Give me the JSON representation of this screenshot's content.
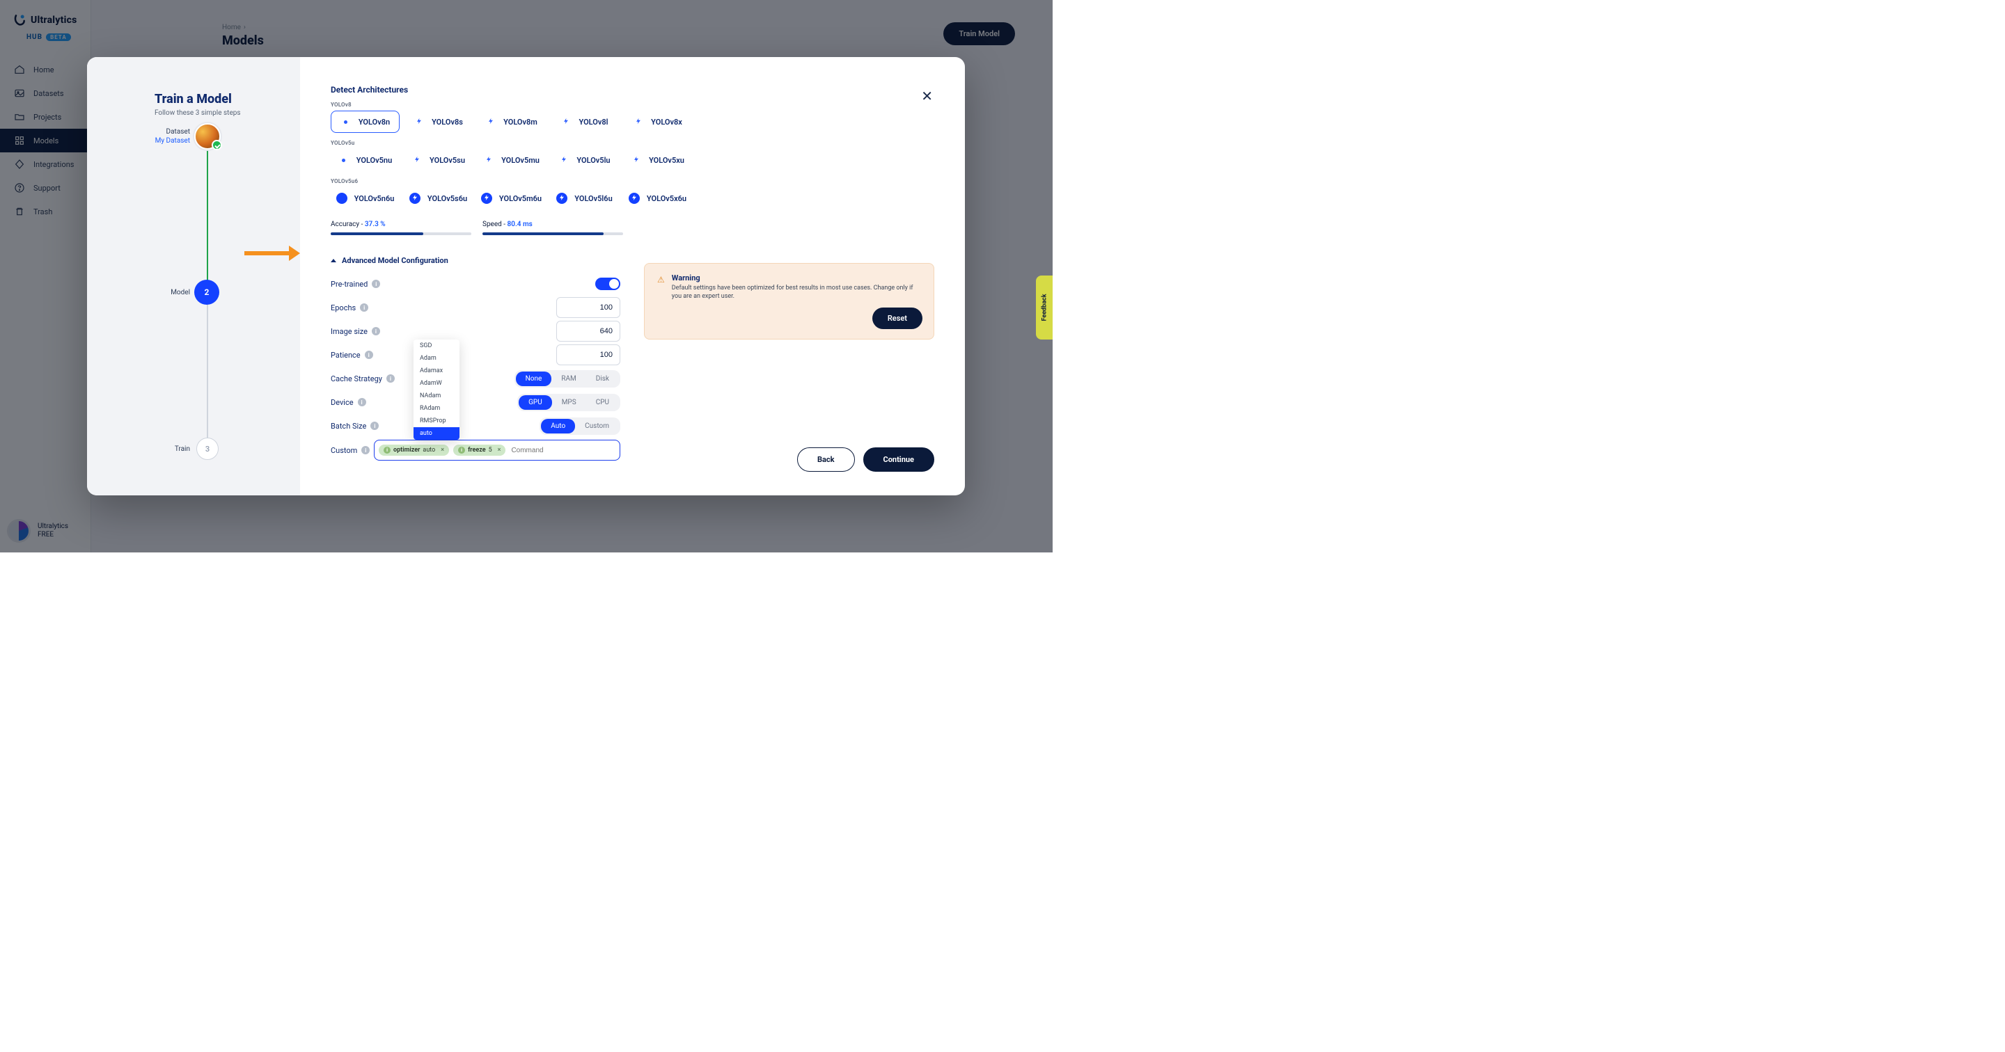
{
  "brand": {
    "name": "Ultralytics",
    "hub": "HUB",
    "beta": "BETA"
  },
  "sidebar": {
    "items": [
      {
        "label": "Home",
        "icon": "home"
      },
      {
        "label": "Datasets",
        "icon": "image"
      },
      {
        "label": "Projects",
        "icon": "folder"
      },
      {
        "label": "Models",
        "icon": "grid",
        "active": true
      },
      {
        "label": "Integrations",
        "icon": "diamond"
      },
      {
        "label": "Support",
        "icon": "help"
      },
      {
        "label": "Trash",
        "icon": "trash"
      }
    ],
    "footer": {
      "name": "Ultralytics",
      "plan": "FREE"
    }
  },
  "header": {
    "crumbs": [
      "Home"
    ],
    "title": "Models",
    "train_btn": "Train Model"
  },
  "modal": {
    "title": "Train a Model",
    "subtitle": "Follow these 3 simple steps",
    "steps": {
      "s1_label": "Dataset",
      "s1_value": "My Dataset",
      "s2_label": "Model",
      "s2_num": "2",
      "s3_label": "Train",
      "s3_num": "3"
    },
    "arch": {
      "section_label": "Detect Architectures",
      "families": [
        {
          "name": "YOLOv8",
          "models": [
            {
              "label": "YOLOv8n",
              "icon": "dot",
              "selected": true,
              "filled": false
            },
            {
              "label": "YOLOv8s",
              "icon": "bolt",
              "filled": false
            },
            {
              "label": "YOLOv8m",
              "icon": "bolt",
              "filled": false
            },
            {
              "label": "YOLOv8l",
              "icon": "bolt",
              "filled": false
            },
            {
              "label": "YOLOv8x",
              "icon": "bolt",
              "filled": false
            }
          ]
        },
        {
          "name": "YOLOv5u",
          "models": [
            {
              "label": "YOLOv5nu",
              "icon": "dot",
              "filled": false
            },
            {
              "label": "YOLOv5su",
              "icon": "bolt",
              "filled": false
            },
            {
              "label": "YOLOv5mu",
              "icon": "bolt",
              "filled": false
            },
            {
              "label": "YOLOv5lu",
              "icon": "bolt",
              "filled": false
            },
            {
              "label": "YOLOv5xu",
              "icon": "bolt",
              "filled": false
            }
          ]
        },
        {
          "name": "YOLOv5u6",
          "models": [
            {
              "label": "YOLOv5n6u",
              "icon": "dot",
              "filled": true
            },
            {
              "label": "YOLOv5s6u",
              "icon": "bolt",
              "filled": true
            },
            {
              "label": "YOLOv5m6u",
              "icon": "bolt",
              "filled": true
            },
            {
              "label": "YOLOv5l6u",
              "icon": "bolt",
              "filled": true
            },
            {
              "label": "YOLOv5x6u",
              "icon": "bolt",
              "filled": true
            }
          ]
        }
      ]
    },
    "metrics": {
      "accuracy": {
        "label": "Accuracy - ",
        "value": "37.3 %",
        "fill_pct": 66
      },
      "speed": {
        "label": "Speed - ",
        "value": "80.4 ms",
        "fill_pct": 86
      }
    },
    "adv": {
      "header": "Advanced Model Configuration",
      "rows": {
        "pretrained": {
          "label": "Pre-trained",
          "on": true
        },
        "epochs": {
          "label": "Epochs",
          "value": "100"
        },
        "imgsize": {
          "label": "Image size",
          "value": "640"
        },
        "patience": {
          "label": "Patience",
          "value": "100"
        },
        "cache": {
          "label": "Cache Strategy",
          "options": [
            "None",
            "RAM",
            "Disk"
          ],
          "active": 0
        },
        "device": {
          "label": "Device",
          "options": [
            "GPU",
            "MPS",
            "CPU"
          ],
          "active": 0
        },
        "batch": {
          "label": "Batch Size",
          "options": [
            "Auto",
            "Custom"
          ],
          "active": 0
        },
        "custom": {
          "label": "Custom",
          "placeholder": "Command",
          "tags": [
            {
              "k": "optimizer",
              "v": "auto"
            },
            {
              "k": "freeze",
              "v": "5"
            }
          ],
          "dropdown": [
            "SGD",
            "Adam",
            "Adamax",
            "AdamW",
            "NAdam",
            "RAdam",
            "RMSProp",
            "auto"
          ],
          "dropdown_selected": 7
        }
      }
    },
    "warning": {
      "title": "Warning",
      "text": "Default settings have been optimized for best results in most use cases. Change only if you are an expert user.",
      "reset": "Reset"
    },
    "footer": {
      "back": "Back",
      "continue": "Continue"
    }
  },
  "feedback": "Feedback"
}
